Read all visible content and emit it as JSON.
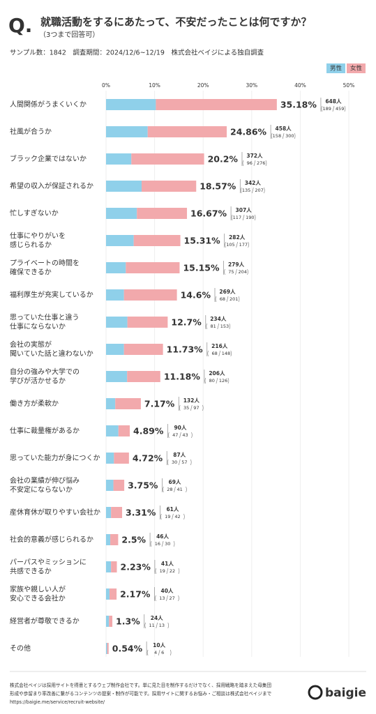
{
  "header": {
    "q": "Q.",
    "title": "就職活動をするにあたって、不安だったことは何ですか？",
    "subtitle": "（3つまで回答可）",
    "meta": "サンプル数：1842　調査期間：2024/12/6~12/19　株式会社ベイジによる独自調査"
  },
  "chart_data": {
    "type": "stacked_barh",
    "categories": [
      [
        "人間関係がうまくいくか"
      ],
      [
        "社風が合うか"
      ],
      [
        "ブラック企業ではないか"
      ],
      [
        "希望の収入が保証されるか"
      ],
      [
        "忙しすぎないか"
      ],
      [
        "仕事にやりがいを",
        "感じられるか"
      ],
      [
        "プライベートの時間を",
        "確保できるか"
      ],
      [
        "福利厚生が充実しているか"
      ],
      [
        "思っていた仕事と違う",
        "仕事にならないか"
      ],
      [
        "会社の実態が",
        "聞いていた話と違わないか"
      ],
      [
        "自分の強みや大学での",
        "学びが活かせるか"
      ],
      [
        "働き方が柔軟か"
      ],
      [
        "仕事に裁量権があるか"
      ],
      [
        "思っていた能力が身につくか"
      ],
      [
        "会社の業績が伸び悩み",
        "不安定にならないか"
      ],
      [
        "産休育休が取りやすい会社か"
      ],
      [
        "社会的意義が感じられるか"
      ],
      [
        "パーパスやミッションに",
        "共感できるか"
      ],
      [
        "家族や親しい人が",
        "安心できる会社か"
      ],
      [
        "経営者が尊敬できるか"
      ],
      [
        "その他"
      ]
    ],
    "series": [
      {
        "name": "男性",
        "color": "#8fd0ea",
        "values": [
          10.26,
          8.58,
          5.21,
          7.33,
          6.35,
          5.7,
          4.07,
          3.69,
          4.4,
          3.69,
          4.34,
          1.9,
          2.55,
          1.63,
          1.52,
          1.03,
          0.87,
          1.03,
          0.71,
          0.6,
          0.22
        ]
      },
      {
        "name": "女性",
        "color": "#f2a9ac",
        "values": [
          24.92,
          16.28,
          14.99,
          11.24,
          10.32,
          9.61,
          11.08,
          10.91,
          8.3,
          8.04,
          6.84,
          5.27,
          2.34,
          3.09,
          2.23,
          2.28,
          1.63,
          1.2,
          1.46,
          0.7,
          0.32
        ]
      }
    ],
    "totals": [
      35.18,
      24.86,
      20.2,
      18.57,
      16.67,
      15.31,
      15.15,
      14.6,
      12.7,
      11.73,
      11.18,
      7.17,
      4.89,
      4.72,
      3.75,
      3.31,
      2.5,
      2.23,
      2.17,
      1.3,
      0.54
    ],
    "total_labels": [
      "35.18%",
      "24.86%",
      "20.2%",
      "18.57%",
      "16.67%",
      "15.31%",
      "15.15%",
      "14.6%",
      "12.7%",
      "11.73%",
      "11.18%",
      "7.17%",
      "4.89%",
      "4.72%",
      "3.75%",
      "3.31%",
      "2.5%",
      "2.23%",
      "2.17%",
      "1.3%",
      "0.54%"
    ],
    "count_labels": [
      "648人",
      "458人",
      "372人",
      "342人",
      "307人",
      "282人",
      "279人",
      "269人",
      "234人",
      "216人",
      "206人",
      "132人",
      "90人",
      "87人",
      "69人",
      "61人",
      "46人",
      "41人",
      "40人",
      "24人",
      "10人"
    ],
    "male_counts": [
      189,
      158,
      96,
      135,
      117,
      105,
      75,
      68,
      81,
      68,
      80,
      35,
      47,
      30,
      28,
      19,
      16,
      19,
      13,
      11,
      4
    ],
    "female_counts": [
      459,
      300,
      276,
      207,
      190,
      177,
      204,
      201,
      153,
      148,
      126,
      97,
      43,
      57,
      41,
      42,
      30,
      22,
      27,
      13,
      6
    ],
    "xlim": [
      0,
      50
    ],
    "xticks": [
      {
        "value": 0,
        "label": "0%"
      },
      {
        "value": 10,
        "label": "10%"
      },
      {
        "value": 20,
        "label": "20%"
      },
      {
        "value": 30,
        "label": "30%"
      },
      {
        "value": 40,
        "label": "40%"
      },
      {
        "value": 50,
        "label": "50%"
      }
    ],
    "grid": true,
    "legend": "top-right"
  },
  "footer": {
    "lines": [
      "株式会社ベイジは採用サイトを得意とするウェブ制作会社です。単に見た目を制作するだけでなく、採用戦略を踏まえた母集団",
      "形成や歩留まり率改善に繋がるコンテンツの提案・制作が可能です。採用サイトに関するお悩み・ご相談は株式会社ベイジまで",
      "https://baigie.me/service/recruit-website/"
    ],
    "logo": "baigie"
  }
}
